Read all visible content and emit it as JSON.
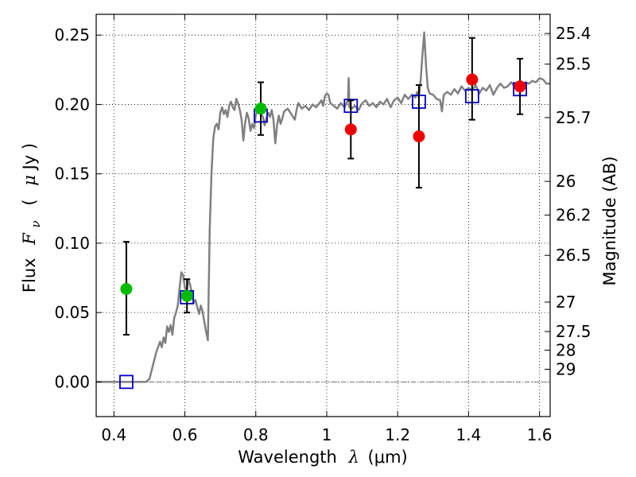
{
  "chart_data": {
    "type": "scatter",
    "xlabel_prefix": "Wavelength",
    "xlabel_symbol": "λ",
    "xlabel_unit": "(μm)",
    "ylabel_prefix": "Flux",
    "ylabel_symbol": "F",
    "ylabel_subscript": "ν",
    "ylabel_unit_open": "(",
    "ylabel_unit_mu": "μ",
    "ylabel_unit_close": "Jy )",
    "y2label": "Magnitude (AB)",
    "xlim": [
      0.35,
      1.63
    ],
    "ylim": [
      -0.025,
      0.265
    ],
    "grid": true,
    "x_ticks": [
      {
        "value": 0.4,
        "label": "0.4"
      },
      {
        "value": 0.6,
        "label": "0.6"
      },
      {
        "value": 0.8,
        "label": "0.8"
      },
      {
        "value": 1.0,
        "label": "1"
      },
      {
        "value": 1.2,
        "label": "1.2"
      },
      {
        "value": 1.4,
        "label": "1.4"
      },
      {
        "value": 1.6,
        "label": "1.6"
      }
    ],
    "y_ticks": [
      {
        "value": 0.0,
        "label": "0.00"
      },
      {
        "value": 0.05,
        "label": "0.05"
      },
      {
        "value": 0.1,
        "label": "0.10"
      },
      {
        "value": 0.15,
        "label": "0.15"
      },
      {
        "value": 0.2,
        "label": "0.20"
      },
      {
        "value": 0.25,
        "label": "0.25"
      }
    ],
    "magnitude_ticks": [
      "25.4",
      "25.5",
      "25.7",
      "26",
      "26.2",
      "26.5",
      "27",
      "27.5",
      "28",
      "29"
    ],
    "colors": {
      "template": "#808080",
      "green": "#00bb00",
      "red": "#ee0000",
      "model": "#0000cc",
      "error": "#000000",
      "zero_line": "#555555"
    },
    "template_spectrum": [
      [
        0.35,
        0.0
      ],
      [
        0.49,
        0.0
      ],
      [
        0.5,
        0.002
      ],
      [
        0.51,
        0.012
      ],
      [
        0.52,
        0.022
      ],
      [
        0.53,
        0.029
      ],
      [
        0.535,
        0.025
      ],
      [
        0.54,
        0.032
      ],
      [
        0.545,
        0.028
      ],
      [
        0.55,
        0.04
      ],
      [
        0.555,
        0.036
      ],
      [
        0.56,
        0.041
      ],
      [
        0.565,
        0.034
      ],
      [
        0.57,
        0.046
      ],
      [
        0.575,
        0.05
      ],
      [
        0.58,
        0.055
      ],
      [
        0.585,
        0.067
      ],
      [
        0.59,
        0.079
      ],
      [
        0.595,
        0.077
      ],
      [
        0.6,
        0.068
      ],
      [
        0.605,
        0.065
      ],
      [
        0.61,
        0.074
      ],
      [
        0.615,
        0.07
      ],
      [
        0.62,
        0.063
      ],
      [
        0.625,
        0.057
      ],
      [
        0.63,
        0.059
      ],
      [
        0.635,
        0.054
      ],
      [
        0.64,
        0.049
      ],
      [
        0.645,
        0.055
      ],
      [
        0.65,
        0.051
      ],
      [
        0.655,
        0.043
      ],
      [
        0.66,
        0.036
      ],
      [
        0.665,
        0.03
      ],
      [
        0.67,
        0.11
      ],
      [
        0.675,
        0.15
      ],
      [
        0.68,
        0.175
      ],
      [
        0.685,
        0.184
      ],
      [
        0.69,
        0.186
      ],
      [
        0.695,
        0.182
      ],
      [
        0.7,
        0.194
      ],
      [
        0.705,
        0.198
      ],
      [
        0.71,
        0.193
      ],
      [
        0.715,
        0.196
      ],
      [
        0.72,
        0.191
      ],
      [
        0.725,
        0.199
      ],
      [
        0.73,
        0.202
      ],
      [
        0.735,
        0.198
      ],
      [
        0.74,
        0.196
      ],
      [
        0.745,
        0.204
      ],
      [
        0.75,
        0.201
      ],
      [
        0.755,
        0.196
      ],
      [
        0.76,
        0.189
      ],
      [
        0.765,
        0.174
      ],
      [
        0.77,
        0.187
      ],
      [
        0.775,
        0.194
      ],
      [
        0.78,
        0.19
      ],
      [
        0.785,
        0.181
      ],
      [
        0.79,
        0.186
      ],
      [
        0.795,
        0.183
      ],
      [
        0.8,
        0.192
      ],
      [
        0.805,
        0.196
      ],
      [
        0.81,
        0.199
      ],
      [
        0.815,
        0.193
      ],
      [
        0.82,
        0.191
      ],
      [
        0.825,
        0.185
      ],
      [
        0.83,
        0.19
      ],
      [
        0.835,
        0.194
      ],
      [
        0.84,
        0.191
      ],
      [
        0.845,
        0.196
      ],
      [
        0.85,
        0.189
      ],
      [
        0.855,
        0.172
      ],
      [
        0.86,
        0.185
      ],
      [
        0.865,
        0.192
      ],
      [
        0.87,
        0.186
      ],
      [
        0.875,
        0.19
      ],
      [
        0.88,
        0.195
      ],
      [
        0.89,
        0.197
      ],
      [
        0.9,
        0.193
      ],
      [
        0.91,
        0.189
      ],
      [
        0.915,
        0.196
      ],
      [
        0.92,
        0.201
      ],
      [
        0.93,
        0.197
      ],
      [
        0.94,
        0.199
      ],
      [
        0.95,
        0.196
      ],
      [
        0.96,
        0.2
      ],
      [
        0.97,
        0.198
      ],
      [
        0.98,
        0.201
      ],
      [
        0.985,
        0.203
      ],
      [
        0.99,
        0.199
      ],
      [
        0.995,
        0.206
      ],
      [
        1.0,
        0.208
      ],
      [
        1.005,
        0.207
      ],
      [
        1.01,
        0.201
      ],
      [
        1.02,
        0.199
      ],
      [
        1.03,
        0.197
      ],
      [
        1.04,
        0.201
      ],
      [
        1.05,
        0.198
      ],
      [
        1.06,
        0.203
      ],
      [
        1.062,
        0.219
      ],
      [
        1.064,
        0.198
      ],
      [
        1.07,
        0.197
      ],
      [
        1.08,
        0.199
      ],
      [
        1.09,
        0.196
      ],
      [
        1.1,
        0.201
      ],
      [
        1.11,
        0.203
      ],
      [
        1.12,
        0.199
      ],
      [
        1.13,
        0.201
      ],
      [
        1.14,
        0.198
      ],
      [
        1.15,
        0.202
      ],
      [
        1.16,
        0.2
      ],
      [
        1.17,
        0.204
      ],
      [
        1.18,
        0.198
      ],
      [
        1.19,
        0.203
      ],
      [
        1.2,
        0.205
      ],
      [
        1.21,
        0.201
      ],
      [
        1.22,
        0.207
      ],
      [
        1.23,
        0.204
      ],
      [
        1.24,
        0.207
      ],
      [
        1.25,
        0.205
      ],
      [
        1.255,
        0.209
      ],
      [
        1.26,
        0.205
      ],
      [
        1.265,
        0.218
      ],
      [
        1.27,
        0.236
      ],
      [
        1.275,
        0.252
      ],
      [
        1.28,
        0.228
      ],
      [
        1.285,
        0.212
      ],
      [
        1.29,
        0.208
      ],
      [
        1.3,
        0.207
      ],
      [
        1.31,
        0.204
      ],
      [
        1.32,
        0.203
      ],
      [
        1.325,
        0.195
      ],
      [
        1.33,
        0.207
      ],
      [
        1.34,
        0.209
      ],
      [
        1.35,
        0.207
      ],
      [
        1.36,
        0.211
      ],
      [
        1.37,
        0.208
      ],
      [
        1.38,
        0.213
      ],
      [
        1.39,
        0.21
      ],
      [
        1.4,
        0.212
      ],
      [
        1.41,
        0.21
      ],
      [
        1.42,
        0.214
      ],
      [
        1.43,
        0.208
      ],
      [
        1.44,
        0.212
      ],
      [
        1.45,
        0.21
      ],
      [
        1.46,
        0.214
      ],
      [
        1.47,
        0.207
      ],
      [
        1.48,
        0.212
      ],
      [
        1.49,
        0.215
      ],
      [
        1.5,
        0.212
      ],
      [
        1.51,
        0.213
      ],
      [
        1.52,
        0.216
      ],
      [
        1.53,
        0.213
      ],
      [
        1.54,
        0.215
      ],
      [
        1.55,
        0.214
      ],
      [
        1.56,
        0.216
      ],
      [
        1.57,
        0.215
      ],
      [
        1.58,
        0.217
      ],
      [
        1.59,
        0.216
      ],
      [
        1.6,
        0.219
      ],
      [
        1.61,
        0.218
      ],
      [
        1.62,
        0.215
      ],
      [
        1.63,
        0.215
      ]
    ],
    "observed_points": [
      {
        "x": 0.435,
        "y": 0.067,
        "err_low": 0.034,
        "err_high": 0.101,
        "color": "green"
      },
      {
        "x": 0.606,
        "y": 0.062,
        "err_low": 0.05,
        "err_high": 0.074,
        "color": "green"
      },
      {
        "x": 0.814,
        "y": 0.197,
        "err_low": 0.178,
        "err_high": 0.216,
        "color": "green"
      },
      {
        "x": 1.068,
        "y": 0.182,
        "err_low": 0.161,
        "err_high": 0.203,
        "color": "red"
      },
      {
        "x": 1.26,
        "y": 0.177,
        "err_low": 0.14,
        "err_high": 0.214,
        "color": "red"
      },
      {
        "x": 1.41,
        "y": 0.218,
        "err_low": 0.189,
        "err_high": 0.248,
        "color": "red"
      },
      {
        "x": 1.545,
        "y": 0.213,
        "err_low": 0.193,
        "err_high": 0.233,
        "color": "red"
      }
    ],
    "model_points": [
      {
        "x": 0.435,
        "y": 0.0
      },
      {
        "x": 0.606,
        "y": 0.061
      },
      {
        "x": 0.814,
        "y": 0.192
      },
      {
        "x": 1.068,
        "y": 0.199
      },
      {
        "x": 1.26,
        "y": 0.202
      },
      {
        "x": 1.41,
        "y": 0.206
      },
      {
        "x": 1.545,
        "y": 0.211
      }
    ]
  }
}
